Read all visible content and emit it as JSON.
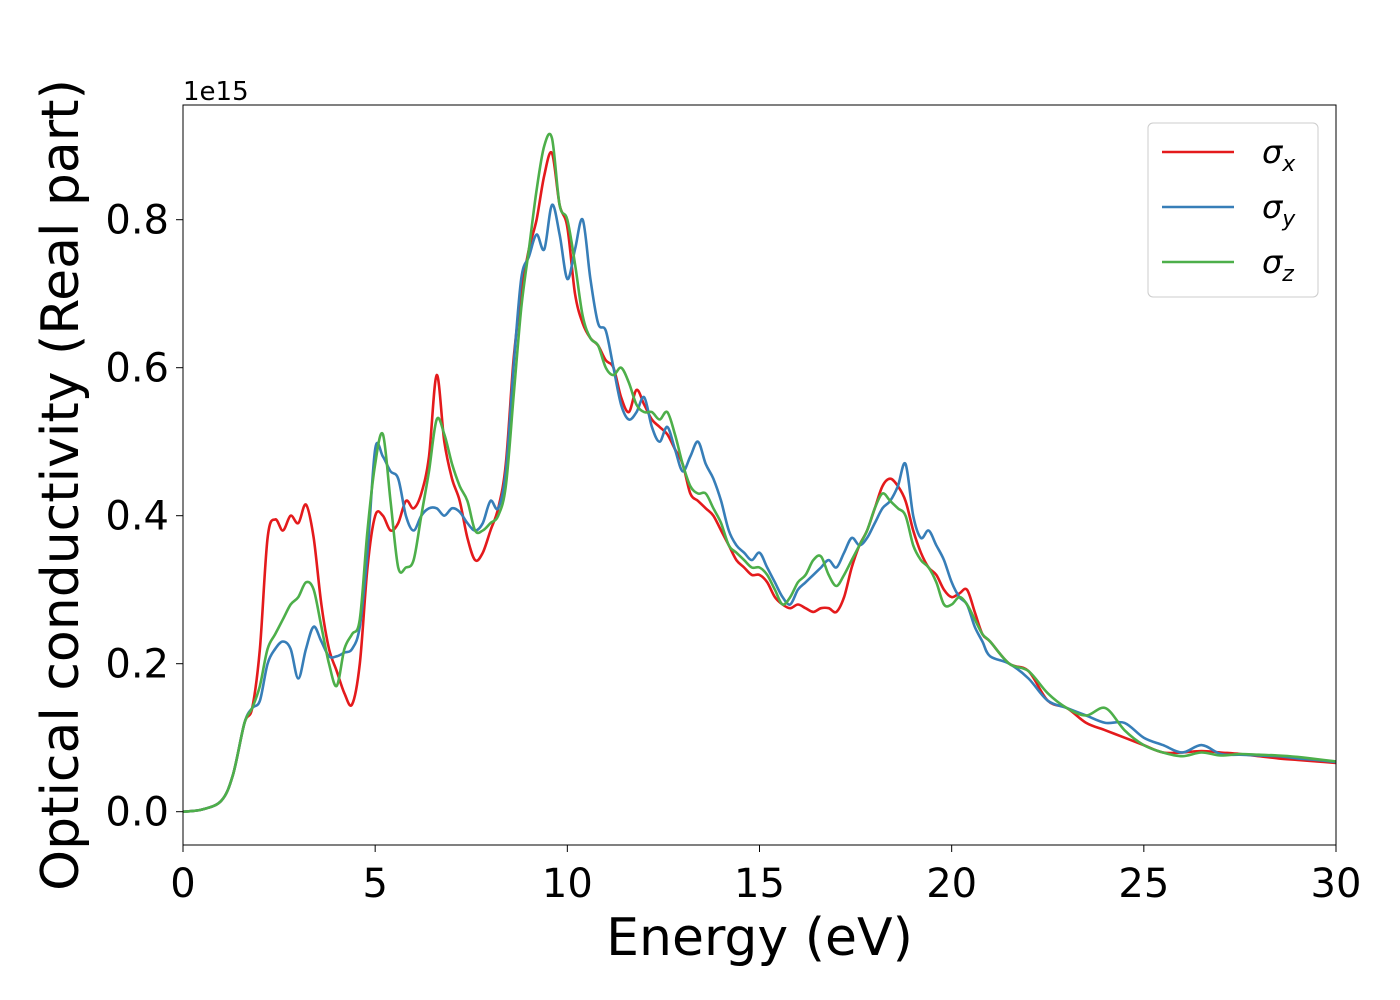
{
  "chart_data": {
    "type": "line",
    "title": "",
    "xlabel": "Energy (eV)",
    "ylabel": "Optical conductivity (Real part)",
    "y_offset_label": "1e15",
    "y_scale": 1000000000000000.0,
    "xlim": [
      0,
      30
    ],
    "ylim": [
      -0.045,
      0.955
    ],
    "x_ticks": [
      0,
      5,
      10,
      15,
      20,
      25,
      30
    ],
    "x_tick_labels": [
      "0",
      "5",
      "10",
      "15",
      "20",
      "25",
      "30"
    ],
    "y_ticks": [
      0.0,
      0.2,
      0.4,
      0.6,
      0.8
    ],
    "y_tick_labels": [
      "0.0",
      "0.2",
      "0.4",
      "0.6",
      "0.8"
    ],
    "grid": false,
    "legend_position": "top-right",
    "series": [
      {
        "name": "σx",
        "legend_symbol": "σ",
        "legend_subscript": "x",
        "color": "#e41a1c",
        "x": [
          0,
          0.5,
          1.0,
          1.3,
          1.6,
          1.8,
          2.0,
          2.2,
          2.4,
          2.6,
          2.8,
          3.0,
          3.2,
          3.4,
          3.6,
          3.8,
          4.0,
          4.2,
          4.4,
          4.6,
          4.8,
          5.0,
          5.2,
          5.4,
          5.6,
          5.8,
          6.0,
          6.2,
          6.4,
          6.6,
          6.8,
          7.0,
          7.2,
          7.4,
          7.6,
          7.8,
          8.0,
          8.2,
          8.4,
          8.6,
          8.8,
          9.0,
          9.2,
          9.4,
          9.6,
          9.8,
          10.0,
          10.2,
          10.4,
          10.6,
          10.8,
          11.0,
          11.2,
          11.4,
          11.6,
          11.8,
          12.0,
          12.2,
          12.4,
          12.6,
          12.8,
          13.0,
          13.2,
          13.4,
          13.6,
          13.8,
          14.0,
          14.2,
          14.4,
          14.6,
          14.8,
          15.0,
          15.2,
          15.4,
          15.6,
          15.8,
          16.0,
          16.2,
          16.4,
          16.6,
          16.8,
          17.0,
          17.2,
          17.4,
          17.6,
          17.8,
          18.0,
          18.2,
          18.4,
          18.6,
          18.8,
          19.0,
          19.2,
          19.4,
          19.6,
          19.8,
          20.0,
          20.2,
          20.4,
          20.6,
          20.8,
          21.0,
          21.5,
          22.0,
          22.5,
          23.0,
          23.5,
          24.0,
          24.5,
          25.0,
          25.5,
          26.0,
          26.5,
          27.0,
          27.5,
          28.0,
          28.5,
          29.0,
          29.5,
          30.0
        ],
        "y": [
          0.0,
          0.003,
          0.015,
          0.05,
          0.12,
          0.14,
          0.22,
          0.37,
          0.395,
          0.38,
          0.4,
          0.39,
          0.415,
          0.37,
          0.28,
          0.22,
          0.19,
          0.16,
          0.145,
          0.2,
          0.33,
          0.4,
          0.4,
          0.38,
          0.39,
          0.42,
          0.41,
          0.43,
          0.48,
          0.59,
          0.5,
          0.45,
          0.42,
          0.37,
          0.34,
          0.35,
          0.38,
          0.41,
          0.47,
          0.61,
          0.7,
          0.76,
          0.8,
          0.86,
          0.89,
          0.82,
          0.79,
          0.7,
          0.66,
          0.64,
          0.63,
          0.61,
          0.6,
          0.56,
          0.54,
          0.57,
          0.55,
          0.53,
          0.52,
          0.51,
          0.49,
          0.47,
          0.43,
          0.42,
          0.41,
          0.4,
          0.38,
          0.36,
          0.34,
          0.33,
          0.32,
          0.32,
          0.31,
          0.29,
          0.28,
          0.275,
          0.28,
          0.275,
          0.27,
          0.275,
          0.275,
          0.27,
          0.29,
          0.33,
          0.36,
          0.38,
          0.41,
          0.44,
          0.45,
          0.44,
          0.42,
          0.38,
          0.35,
          0.33,
          0.32,
          0.3,
          0.29,
          0.295,
          0.3,
          0.27,
          0.24,
          0.23,
          0.2,
          0.19,
          0.15,
          0.14,
          0.12,
          0.11,
          0.1,
          0.09,
          0.08,
          0.08,
          0.082,
          0.08,
          0.078,
          0.075,
          0.072,
          0.07,
          0.068,
          0.066
        ]
      },
      {
        "name": "σy",
        "legend_symbol": "σ",
        "legend_subscript": "y",
        "color": "#377eb8",
        "x": [
          0,
          0.5,
          1.0,
          1.3,
          1.6,
          1.8,
          2.0,
          2.2,
          2.4,
          2.6,
          2.8,
          3.0,
          3.2,
          3.4,
          3.6,
          3.8,
          4.0,
          4.2,
          4.4,
          4.6,
          4.8,
          5.0,
          5.2,
          5.4,
          5.6,
          5.8,
          6.0,
          6.2,
          6.4,
          6.6,
          6.8,
          7.0,
          7.2,
          7.4,
          7.6,
          7.8,
          8.0,
          8.2,
          8.4,
          8.6,
          8.8,
          9.0,
          9.2,
          9.4,
          9.6,
          9.8,
          10.0,
          10.2,
          10.4,
          10.6,
          10.8,
          11.0,
          11.2,
          11.4,
          11.6,
          11.8,
          12.0,
          12.2,
          12.4,
          12.6,
          12.8,
          13.0,
          13.2,
          13.4,
          13.6,
          13.8,
          14.0,
          14.2,
          14.4,
          14.6,
          14.8,
          15.0,
          15.2,
          15.4,
          15.6,
          15.8,
          16.0,
          16.2,
          16.4,
          16.6,
          16.8,
          17.0,
          17.2,
          17.4,
          17.6,
          17.8,
          18.0,
          18.2,
          18.4,
          18.6,
          18.8,
          19.0,
          19.2,
          19.4,
          19.6,
          19.8,
          20.0,
          20.2,
          20.4,
          20.6,
          20.8,
          21.0,
          21.5,
          22.0,
          22.5,
          23.0,
          23.5,
          24.0,
          24.5,
          25.0,
          25.5,
          26.0,
          26.5,
          27.0,
          27.5,
          28.0,
          28.5,
          29.0,
          29.5,
          30.0
        ],
        "y": [
          0.0,
          0.003,
          0.015,
          0.05,
          0.12,
          0.14,
          0.15,
          0.2,
          0.22,
          0.23,
          0.22,
          0.18,
          0.22,
          0.25,
          0.23,
          0.21,
          0.21,
          0.215,
          0.22,
          0.25,
          0.35,
          0.49,
          0.48,
          0.46,
          0.45,
          0.4,
          0.38,
          0.4,
          0.41,
          0.41,
          0.4,
          0.41,
          0.405,
          0.39,
          0.38,
          0.39,
          0.42,
          0.41,
          0.46,
          0.6,
          0.72,
          0.75,
          0.78,
          0.76,
          0.82,
          0.78,
          0.72,
          0.76,
          0.8,
          0.72,
          0.66,
          0.65,
          0.6,
          0.55,
          0.53,
          0.54,
          0.56,
          0.52,
          0.5,
          0.52,
          0.49,
          0.46,
          0.48,
          0.5,
          0.47,
          0.45,
          0.42,
          0.38,
          0.36,
          0.35,
          0.34,
          0.35,
          0.33,
          0.31,
          0.29,
          0.28,
          0.3,
          0.31,
          0.32,
          0.33,
          0.34,
          0.33,
          0.35,
          0.37,
          0.36,
          0.37,
          0.39,
          0.41,
          0.42,
          0.44,
          0.47,
          0.4,
          0.37,
          0.38,
          0.36,
          0.34,
          0.31,
          0.29,
          0.28,
          0.25,
          0.23,
          0.21,
          0.2,
          0.18,
          0.15,
          0.14,
          0.13,
          0.12,
          0.12,
          0.1,
          0.09,
          0.08,
          0.09,
          0.078,
          0.077,
          0.076,
          0.075,
          0.072,
          0.07,
          0.067
        ]
      },
      {
        "name": "σz",
        "legend_symbol": "σ",
        "legend_subscript": "z",
        "color": "#4daf4a",
        "x": [
          0,
          0.5,
          1.0,
          1.3,
          1.6,
          1.8,
          2.0,
          2.2,
          2.4,
          2.6,
          2.8,
          3.0,
          3.2,
          3.4,
          3.6,
          3.8,
          4.0,
          4.2,
          4.4,
          4.6,
          4.8,
          5.0,
          5.2,
          5.4,
          5.6,
          5.8,
          6.0,
          6.2,
          6.4,
          6.6,
          6.8,
          7.0,
          7.2,
          7.4,
          7.6,
          7.8,
          8.0,
          8.2,
          8.4,
          8.6,
          8.8,
          9.0,
          9.2,
          9.4,
          9.6,
          9.8,
          10.0,
          10.2,
          10.4,
          10.6,
          10.8,
          11.0,
          11.2,
          11.4,
          11.6,
          11.8,
          12.0,
          12.2,
          12.4,
          12.6,
          12.8,
          13.0,
          13.2,
          13.4,
          13.6,
          13.8,
          14.0,
          14.2,
          14.4,
          14.6,
          14.8,
          15.0,
          15.2,
          15.4,
          15.6,
          15.8,
          16.0,
          16.2,
          16.4,
          16.6,
          16.8,
          17.0,
          17.2,
          17.4,
          17.6,
          17.8,
          18.0,
          18.2,
          18.4,
          18.6,
          18.8,
          19.0,
          19.2,
          19.4,
          19.6,
          19.8,
          20.0,
          20.2,
          20.4,
          20.6,
          20.8,
          21.0,
          21.5,
          22.0,
          22.5,
          23.0,
          23.5,
          24.0,
          24.5,
          25.0,
          25.5,
          26.0,
          26.5,
          27.0,
          27.5,
          28.0,
          28.5,
          29.0,
          29.5,
          30.0
        ],
        "y": [
          0.0,
          0.003,
          0.015,
          0.05,
          0.12,
          0.14,
          0.17,
          0.22,
          0.24,
          0.26,
          0.28,
          0.29,
          0.31,
          0.3,
          0.25,
          0.2,
          0.17,
          0.22,
          0.24,
          0.26,
          0.38,
          0.47,
          0.51,
          0.42,
          0.33,
          0.33,
          0.34,
          0.4,
          0.46,
          0.53,
          0.51,
          0.47,
          0.44,
          0.42,
          0.38,
          0.38,
          0.39,
          0.4,
          0.44,
          0.56,
          0.68,
          0.76,
          0.84,
          0.9,
          0.91,
          0.82,
          0.8,
          0.74,
          0.67,
          0.64,
          0.63,
          0.6,
          0.59,
          0.6,
          0.58,
          0.55,
          0.54,
          0.54,
          0.53,
          0.54,
          0.51,
          0.47,
          0.44,
          0.43,
          0.43,
          0.41,
          0.39,
          0.36,
          0.35,
          0.34,
          0.33,
          0.33,
          0.32,
          0.3,
          0.28,
          0.29,
          0.31,
          0.32,
          0.34,
          0.345,
          0.32,
          0.305,
          0.32,
          0.34,
          0.36,
          0.38,
          0.41,
          0.43,
          0.42,
          0.41,
          0.4,
          0.36,
          0.34,
          0.33,
          0.31,
          0.28,
          0.28,
          0.29,
          0.28,
          0.26,
          0.24,
          0.23,
          0.2,
          0.19,
          0.16,
          0.14,
          0.13,
          0.14,
          0.11,
          0.09,
          0.08,
          0.075,
          0.08,
          0.076,
          0.078,
          0.077,
          0.076,
          0.074,
          0.071,
          0.068
        ]
      }
    ]
  }
}
